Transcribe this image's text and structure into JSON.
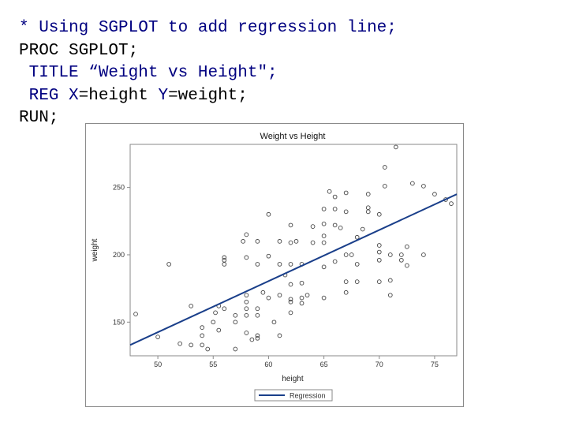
{
  "code": {
    "line1": "* Using SGPLOT to add regression line;",
    "line2_kw": "PROC SGPLOT;",
    "line3_kw": " TITLE ",
    "line3_str": "“Weight vs Height\";",
    "line4_kw": " REG ",
    "line4_x": "X",
    "line4_eq1": "=height ",
    "line4_y": "Y",
    "line4_eq2": "=weight;",
    "line5": "RUN;"
  },
  "colors": {
    "code_comment": "#000080",
    "code_keyword": "#000000",
    "regression": "#1a3f8a",
    "marker": "#444444"
  },
  "chart_data": {
    "type": "scatter",
    "title": "Weight vs Height",
    "xlabel": "height",
    "ylabel": "weight",
    "xlim": [
      47.5,
      77
    ],
    "ylim": [
      125,
      282
    ],
    "xticks": [
      50,
      55,
      60,
      65,
      70,
      75
    ],
    "xtick_labels": [
      "50",
      "55",
      "60",
      "65",
      "70",
      "75"
    ],
    "yticks": [
      150,
      200,
      250
    ],
    "ytick_labels": [
      "150",
      "200",
      "250"
    ],
    "series": [
      {
        "kind": "scatter",
        "points": [
          [
            48.0,
            156
          ],
          [
            50.0,
            139
          ],
          [
            51.0,
            193
          ],
          [
            52.0,
            134
          ],
          [
            53.0,
            133
          ],
          [
            53.0,
            162
          ],
          [
            54.0,
            140
          ],
          [
            54.0,
            146
          ],
          [
            54.0,
            133
          ],
          [
            54.5,
            130
          ],
          [
            55.0,
            150
          ],
          [
            55.2,
            157
          ],
          [
            55.5,
            162
          ],
          [
            55.5,
            144
          ],
          [
            56.0,
            198
          ],
          [
            56.0,
            196
          ],
          [
            56.0,
            193
          ],
          [
            56.0,
            160
          ],
          [
            57.0,
            155
          ],
          [
            57.0,
            150
          ],
          [
            57.0,
            130
          ],
          [
            57.7,
            210
          ],
          [
            58.0,
            215
          ],
          [
            58.0,
            198
          ],
          [
            58.0,
            170
          ],
          [
            58.0,
            165
          ],
          [
            58.0,
            160
          ],
          [
            58.0,
            155
          ],
          [
            58.0,
            142
          ],
          [
            58.5,
            137
          ],
          [
            59.0,
            210
          ],
          [
            59.0,
            193
          ],
          [
            59.0,
            160
          ],
          [
            59.0,
            155
          ],
          [
            59.0,
            138
          ],
          [
            59.0,
            140
          ],
          [
            59.5,
            172
          ],
          [
            60.0,
            230
          ],
          [
            60.0,
            199
          ],
          [
            60.0,
            168
          ],
          [
            60.5,
            150
          ],
          [
            61.0,
            210
          ],
          [
            61.0,
            193
          ],
          [
            61.0,
            170
          ],
          [
            61.0,
            140
          ],
          [
            61.5,
            185
          ],
          [
            62.0,
            222
          ],
          [
            62.0,
            209
          ],
          [
            62.0,
            193
          ],
          [
            62.0,
            178
          ],
          [
            62.0,
            167
          ],
          [
            62.0,
            165
          ],
          [
            62.0,
            157
          ],
          [
            62.5,
            210
          ],
          [
            63.0,
            193
          ],
          [
            63.0,
            179
          ],
          [
            63.0,
            168
          ],
          [
            63.0,
            164
          ],
          [
            63.5,
            170
          ],
          [
            64.0,
            221
          ],
          [
            64.0,
            209
          ],
          [
            65.0,
            234
          ],
          [
            65.0,
            223
          ],
          [
            65.0,
            214
          ],
          [
            65.0,
            209
          ],
          [
            65.0,
            191
          ],
          [
            65.0,
            168
          ],
          [
            65.5,
            247
          ],
          [
            66.0,
            243
          ],
          [
            66.0,
            234
          ],
          [
            66.0,
            222
          ],
          [
            66.0,
            195
          ],
          [
            66.5,
            220
          ],
          [
            67.0,
            246
          ],
          [
            67.0,
            232
          ],
          [
            67.0,
            200
          ],
          [
            67.0,
            180
          ],
          [
            67.0,
            172
          ],
          [
            67.5,
            200
          ],
          [
            68.0,
            213
          ],
          [
            68.0,
            180
          ],
          [
            68.0,
            193
          ],
          [
            68.5,
            219
          ],
          [
            69.0,
            245
          ],
          [
            69.0,
            235
          ],
          [
            69.0,
            232
          ],
          [
            70.0,
            230
          ],
          [
            70.0,
            207
          ],
          [
            70.0,
            202
          ],
          [
            70.0,
            196
          ],
          [
            70.0,
            180
          ],
          [
            70.5,
            251
          ],
          [
            70.5,
            265
          ],
          [
            71.0,
            200
          ],
          [
            71.0,
            181
          ],
          [
            71.0,
            170
          ],
          [
            71.5,
            280
          ],
          [
            72.0,
            196
          ],
          [
            72.0,
            200
          ],
          [
            72.5,
            206
          ],
          [
            72.5,
            192
          ],
          [
            73.0,
            253
          ],
          [
            74.0,
            200
          ],
          [
            74.0,
            251
          ],
          [
            75.0,
            245
          ],
          [
            76.0,
            241
          ],
          [
            76.5,
            238
          ]
        ]
      },
      {
        "kind": "line",
        "name": "Regression",
        "x": [
          47.5,
          77
        ],
        "y": [
          133,
          245
        ]
      }
    ],
    "legend": {
      "position": "bottom",
      "entries": [
        "Regression"
      ]
    }
  }
}
